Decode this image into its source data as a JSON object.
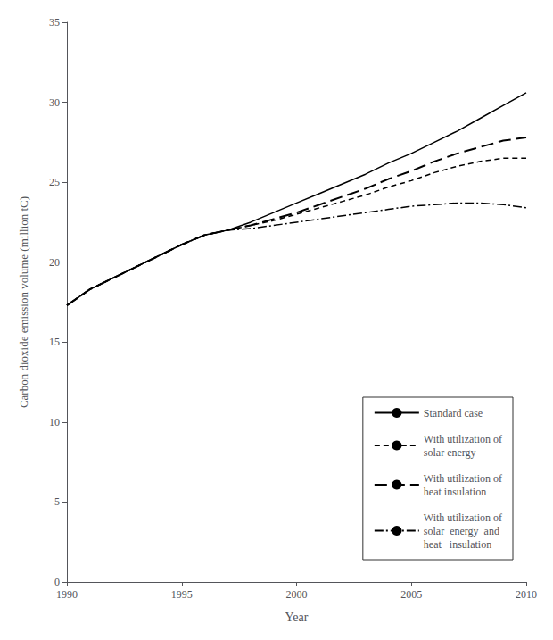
{
  "chart_data": {
    "type": "line",
    "xlabel": "Year",
    "ylabel": "Carbon dioxide emission volume (million tC)",
    "x": [
      1990,
      1991,
      1992,
      1993,
      1994,
      1995,
      1996,
      1997,
      1998,
      1999,
      2000,
      2001,
      2002,
      2003,
      2004,
      2005,
      2006,
      2007,
      2008,
      2009,
      2010
    ],
    "series": [
      {
        "name": "Standard case",
        "color": "#000000",
        "line_style": "solid",
        "values": [
          17.3,
          18.3,
          19.0,
          19.7,
          20.4,
          21.1,
          21.7,
          22.0,
          22.5,
          23.1,
          23.7,
          24.3,
          24.9,
          25.5,
          26.2,
          26.8,
          27.5,
          28.2,
          29.0,
          29.8,
          30.6
        ]
      },
      {
        "name": "With utilization of\nsolar energy",
        "color": "#000000",
        "line_style": "dashed",
        "values": [
          17.3,
          18.3,
          19.0,
          19.7,
          20.4,
          21.1,
          21.7,
          22.0,
          22.3,
          22.6,
          23.0,
          23.4,
          23.8,
          24.2,
          24.7,
          25.1,
          25.6,
          26.0,
          26.3,
          26.5,
          26.5
        ]
      },
      {
        "name": "With utilization of\nheat insulation",
        "color": "#000000",
        "line_style": "longdash",
        "values": [
          17.3,
          18.3,
          19.0,
          19.7,
          20.4,
          21.1,
          21.7,
          22.0,
          22.3,
          22.7,
          23.1,
          23.6,
          24.1,
          24.6,
          25.2,
          25.7,
          26.3,
          26.8,
          27.2,
          27.6,
          27.8
        ]
      },
      {
        "name": "With utilization of\nsolar  energy  and\nheat   insulation",
        "color": "#000000",
        "line_style": "dashdot",
        "values": [
          17.3,
          18.3,
          19.0,
          19.7,
          20.4,
          21.1,
          21.7,
          22.0,
          22.1,
          22.3,
          22.5,
          22.7,
          22.9,
          23.1,
          23.3,
          23.5,
          23.6,
          23.7,
          23.7,
          23.6,
          23.4
        ]
      }
    ],
    "xlim": [
      1990,
      2010
    ],
    "xticks": [
      1990,
      1995,
      2000,
      2005,
      2010
    ],
    "ylim": [
      0,
      35
    ],
    "yticks": [
      0,
      5,
      10,
      15,
      20,
      25,
      30,
      35
    ],
    "grid": false,
    "legend": "lower right"
  }
}
